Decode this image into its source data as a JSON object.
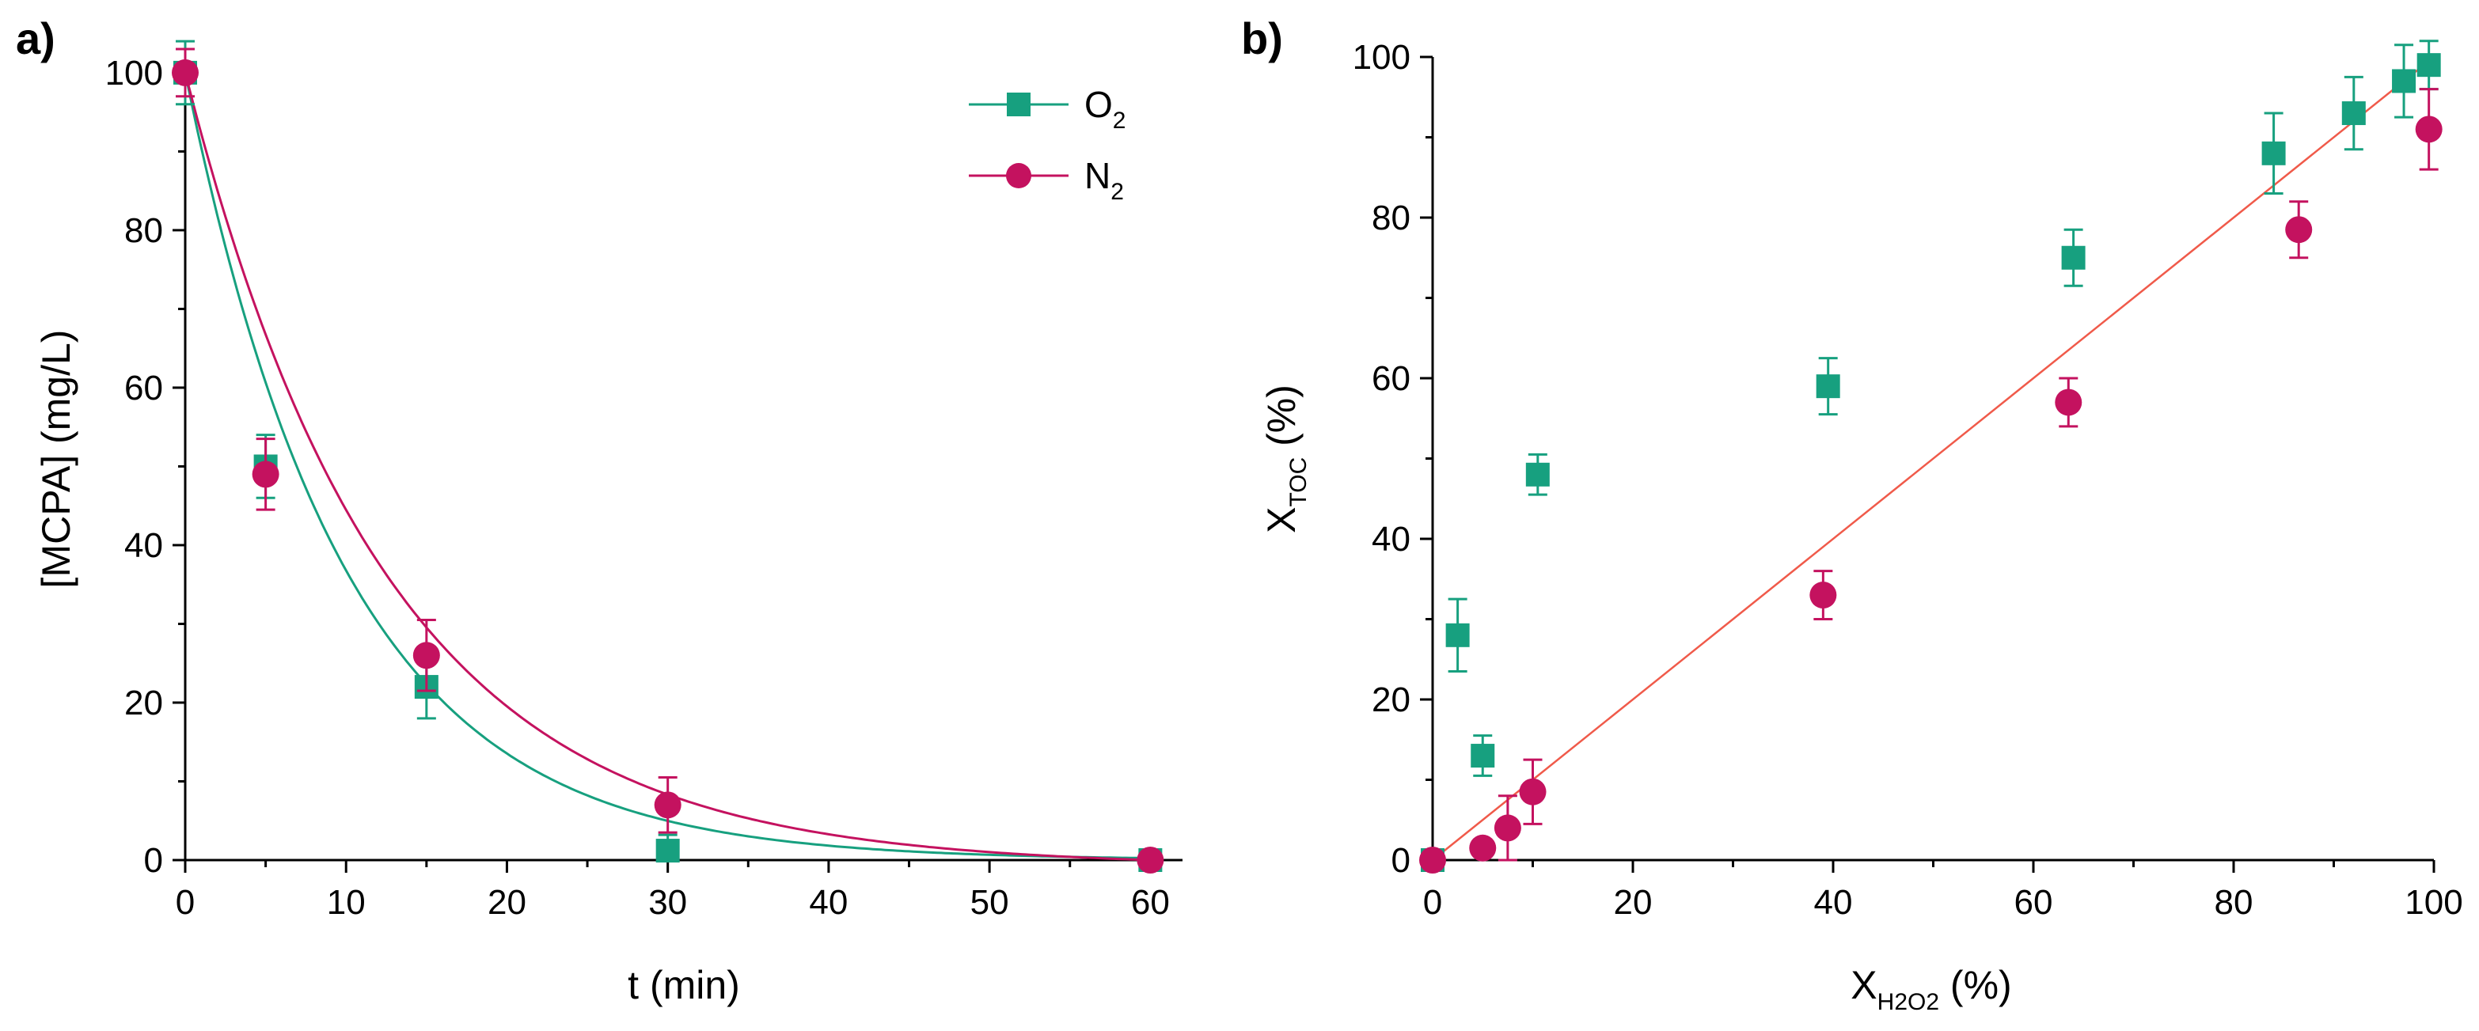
{
  "chart_data": [
    {
      "panel": "a)",
      "type": "scatter",
      "xlabel": "t (min)",
      "ylabel": "[MCPA] (mg/L)",
      "xlim": [
        0,
        62
      ],
      "ylim": [
        0,
        102
      ],
      "xticks": [
        0,
        10,
        20,
        30,
        40,
        50,
        60
      ],
      "yticks": [
        0,
        20,
        40,
        60,
        80,
        100
      ],
      "legend": {
        "position": "top-right"
      },
      "series": [
        {
          "name": "O2",
          "label_main": "O",
          "label_sub": "2",
          "color": "#17a07f",
          "marker": "square",
          "x": [
            0,
            5,
            15,
            30,
            60
          ],
          "y": [
            100,
            50,
            22,
            1.2,
            0
          ],
          "err": [
            4,
            4,
            4,
            2,
            0.5
          ],
          "fit": {
            "model": "exp_decay",
            "c0": 100,
            "k": 0.1,
            "end": 60
          }
        },
        {
          "name": "N2",
          "label_main": "N",
          "label_sub": "2",
          "color": "#c4125f",
          "marker": "circle",
          "x": [
            0,
            5,
            15,
            30,
            60
          ],
          "y": [
            100,
            49,
            26,
            7,
            0
          ],
          "err": [
            3,
            4.5,
            4.5,
            3.5,
            0.5
          ],
          "fit": {
            "model": "exp_decay_offset",
            "c0": 100,
            "k": 0.08,
            "end": 60
          }
        }
      ]
    },
    {
      "panel": "b)",
      "type": "scatter",
      "xlabel_main": "X",
      "xlabel_sub": "H2O2",
      "xlabel_unit": " (%)",
      "ylabel_main": "X",
      "ylabel_sub": "TOC",
      "ylabel_unit": " (%)",
      "xlim": [
        0,
        100
      ],
      "ylim": [
        0,
        100
      ],
      "xticks": [
        0,
        20,
        40,
        60,
        80,
        100
      ],
      "yticks": [
        0,
        20,
        40,
        60,
        80,
        100
      ],
      "series": [
        {
          "name": "O2",
          "color": "#17a07f",
          "marker": "square",
          "x": [
            0,
            2.5,
            5,
            10.5,
            39.5,
            64,
            84,
            92,
            97,
            99.5
          ],
          "y": [
            0,
            28,
            13,
            48,
            59,
            75,
            88,
            93,
            97,
            99
          ],
          "err": [
            0.5,
            4.5,
            2.5,
            2.5,
            3.5,
            3.5,
            5,
            4.5,
            4.5,
            3
          ]
        },
        {
          "name": "N2",
          "color": "#c4125f",
          "marker": "circle",
          "x": [
            0,
            5,
            7.5,
            10,
            39,
            63.5,
            86.5,
            99.5
          ],
          "y": [
            0,
            1.5,
            4,
            8.5,
            33,
            57,
            78.5,
            91
          ],
          "err": [
            0.5,
            1,
            4,
            4,
            3,
            3,
            3.5,
            5
          ]
        }
      ],
      "fit_line": {
        "color": "#f05a4a",
        "x": [
          0,
          100
        ],
        "y": [
          0,
          100
        ]
      }
    }
  ]
}
